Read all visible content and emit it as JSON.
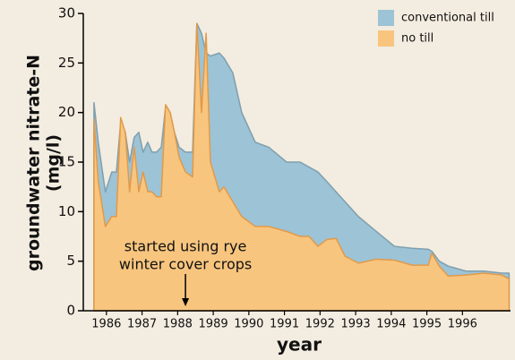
{
  "chart_data": {
    "type": "area",
    "x_label": "year",
    "y_label": [
      "groundwater nitrate-N",
      "(mg/l)"
    ],
    "x": [
      1985.65,
      1985.77,
      1985.97,
      1986.15,
      1986.28,
      1986.4,
      1986.53,
      1986.65,
      1986.78,
      1986.91,
      1987.03,
      1987.16,
      1987.28,
      1987.41,
      1987.54,
      1987.66,
      1987.79,
      1987.91,
      1988.04,
      1988.22,
      1988.42,
      1988.54,
      1988.67,
      1988.8,
      1988.92,
      1989.17,
      1989.3,
      1989.55,
      1989.8,
      1990.18,
      1990.56,
      1991.06,
      1991.44,
      1991.69,
      1991.94,
      1992.2,
      1992.45,
      1992.7,
      1993.08,
      1993.58,
      1994.09,
      1994.59,
      1995.04,
      1995.14,
      1995.35,
      1995.6,
      1996.1,
      1996.6,
      1997.11,
      1997.31
    ],
    "series": [
      {
        "name": "conventional till",
        "color": "#9cc3d6",
        "edge": "#7f9fae",
        "values": [
          21,
          17,
          12,
          14,
          14,
          19,
          18,
          15,
          17.5,
          18,
          16,
          17,
          16,
          16,
          16.5,
          20.5,
          20,
          18,
          16.5,
          16,
          16,
          29,
          28,
          26,
          25.7,
          26,
          25.5,
          24,
          20,
          17,
          16.5,
          15,
          15,
          14.5,
          14,
          13,
          12,
          11,
          9.5,
          8,
          6.5,
          6.3,
          6.2,
          6,
          5,
          4.5,
          4,
          4,
          3.8,
          3.8
        ]
      },
      {
        "name": "no till",
        "color": "#f8c57f",
        "edge": "#e29a47",
        "values": [
          19.3,
          13,
          8.5,
          9.5,
          9.5,
          19.5,
          18,
          12,
          16.5,
          12,
          14,
          12,
          12,
          11.5,
          11.5,
          20.8,
          20,
          18,
          15.5,
          14,
          13.5,
          29,
          20,
          28,
          15,
          12,
          12.5,
          11,
          9.5,
          8.5,
          8.5,
          8,
          7.5,
          7.5,
          6.5,
          7.2,
          7.3,
          5.5,
          4.8,
          5.2,
          5.1,
          4.6,
          4.6,
          5.8,
          4.5,
          3.5,
          3.6,
          3.8,
          3.6,
          3.2
        ]
      }
    ],
    "xlim": [
      1985.35,
      1997.35
    ],
    "xticks": [
      1986,
      1987,
      1988,
      1989,
      1990,
      1991,
      1992,
      1993,
      1994,
      1995,
      1996
    ],
    "ylim": [
      0,
      30
    ],
    "yticks": [
      0,
      5,
      10,
      15,
      20,
      25,
      30
    ],
    "annotation": {
      "text": [
        "started using rye",
        "winter cover crops"
      ],
      "x": 1988.22
    },
    "legend": "top-right"
  }
}
